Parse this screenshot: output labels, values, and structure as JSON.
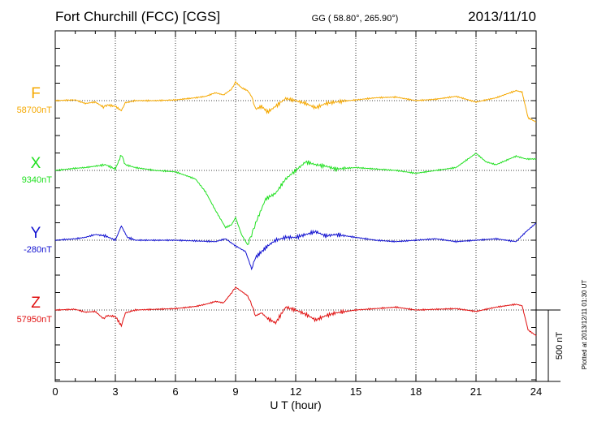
{
  "chart_data": {
    "type": "line",
    "title": "Fort Churchill (FCC)  [CGS]",
    "coords": "GG ( 58.80°, 265.90°)",
    "date": "2013/11/10",
    "xlabel": "U T (hour)",
    "xlim": [
      0,
      24
    ],
    "xticks": [
      "0",
      "3",
      "6",
      "9",
      "12",
      "15",
      "18",
      "21",
      "24"
    ],
    "scale_label": "500 nT",
    "plotted_label": "Plotted at 2013/12/11 01:30 UT",
    "series": [
      {
        "name": "F",
        "baseline": "58700nT",
        "color": "#f5a800",
        "offset_nt": 0,
        "t": [
          0,
          1,
          1.5,
          2,
          2.4,
          2.6,
          3,
          3.3,
          3.5,
          4,
          5,
          6,
          7,
          7.5,
          8,
          8.4,
          8.8,
          9,
          9.3,
          9.6,
          9.8,
          10,
          10.3,
          10.6,
          11,
          11.5,
          12,
          12.5,
          13,
          13.5,
          14,
          15,
          16,
          17,
          18,
          19,
          20,
          21,
          22,
          23,
          23.3,
          23.6,
          24
        ],
        "v": [
          0,
          5,
          -20,
          -10,
          -45,
          -30,
          -40,
          -70,
          -15,
          0,
          0,
          5,
          20,
          30,
          55,
          40,
          80,
          130,
          90,
          70,
          30,
          -60,
          -40,
          -80,
          -40,
          15,
          0,
          -20,
          -50,
          -20,
          -10,
          5,
          20,
          25,
          0,
          10,
          30,
          -10,
          20,
          70,
          60,
          -120,
          -150
        ]
      },
      {
        "name": "X",
        "baseline": "9340nT",
        "color": "#20e020",
        "offset_nt": 0,
        "t": [
          0,
          1,
          1.5,
          2,
          2.5,
          3,
          3.3,
          3.5,
          4,
          5,
          6,
          7,
          7.5,
          8,
          8.5,
          8.8,
          9,
          9.3,
          9.6,
          9.8,
          10,
          10.5,
          11,
          11.5,
          12,
          12.5,
          13,
          13.5,
          14,
          15,
          16,
          17,
          18,
          19,
          20,
          21,
          21.5,
          22,
          23,
          23.5,
          24
        ],
        "v": [
          0,
          15,
          20,
          30,
          40,
          10,
          110,
          40,
          20,
          0,
          -10,
          -60,
          -150,
          -280,
          -400,
          -380,
          -330,
          -450,
          -520,
          -450,
          -370,
          -200,
          -160,
          -60,
          0,
          60,
          40,
          30,
          10,
          20,
          10,
          0,
          -20,
          0,
          20,
          120,
          60,
          40,
          100,
          80,
          80
        ]
      },
      {
        "name": "Y",
        "baseline": "-280nT",
        "color": "#1010d0",
        "offset_nt": 0,
        "t": [
          0,
          1,
          1.5,
          2,
          2.5,
          3,
          3.3,
          3.6,
          4,
          5,
          6,
          7,
          8,
          8.5,
          9,
          9.5,
          9.8,
          10,
          10.3,
          10.6,
          11,
          11.5,
          12,
          12.5,
          13,
          13.5,
          14,
          15,
          16,
          17,
          18,
          19,
          20,
          21,
          22,
          23,
          23.5,
          24
        ],
        "v": [
          0,
          10,
          20,
          40,
          30,
          0,
          100,
          20,
          0,
          0,
          0,
          -5,
          -10,
          10,
          -40,
          -80,
          -200,
          -120,
          -80,
          -40,
          0,
          20,
          20,
          40,
          60,
          30,
          40,
          20,
          0,
          -10,
          0,
          10,
          -10,
          0,
          10,
          -10,
          60,
          120
        ]
      },
      {
        "name": "Z",
        "baseline": "57950nT",
        "color": "#e01010",
        "offset_nt": 0,
        "t": [
          0,
          1,
          1.5,
          2,
          2.4,
          2.6,
          3,
          3.3,
          3.5,
          4,
          5,
          6,
          7,
          7.5,
          8,
          8.4,
          8.8,
          9,
          9.3,
          9.6,
          9.8,
          10,
          10.3,
          10.6,
          11,
          11.5,
          12,
          12.5,
          13,
          13.5,
          14,
          15,
          16,
          17,
          18,
          19,
          20,
          21,
          22,
          23,
          23.3,
          23.6,
          24
        ],
        "v": [
          0,
          5,
          -15,
          -10,
          -60,
          -40,
          -45,
          -110,
          -20,
          0,
          5,
          10,
          25,
          40,
          60,
          50,
          120,
          160,
          130,
          100,
          40,
          -40,
          -20,
          -60,
          -90,
          20,
          0,
          -30,
          -70,
          -40,
          -20,
          0,
          10,
          20,
          0,
          5,
          10,
          -10,
          20,
          40,
          30,
          -140,
          -180
        ]
      }
    ]
  }
}
